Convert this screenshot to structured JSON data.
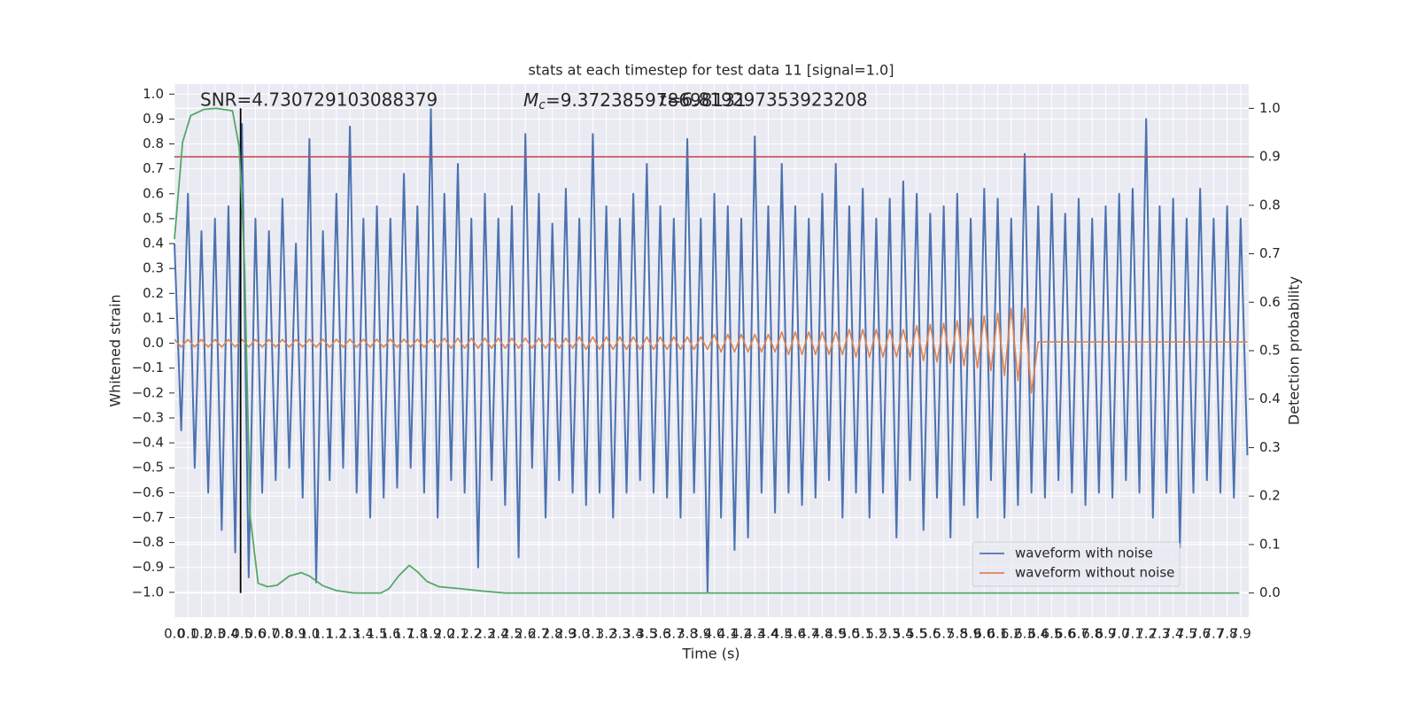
{
  "chart_data": {
    "type": "line",
    "title": "stats at each timestep for test data 11 [signal=1.0]",
    "x_label": "Time (s)",
    "y_label": "Whitened strain",
    "y2_label": "Detection probability",
    "annotations": {
      "snr": "SNR=4.730729103088379",
      "mc_symbol": "M",
      "mc_subscript": "c",
      "mc_value": "=9.372385978698131",
      "t": "t=6.819297353923208"
    },
    "xlim": [
      0,
      7.96
    ],
    "ylim": [
      -1.1,
      1.04
    ],
    "y2lim": [
      -0.05,
      1.05
    ],
    "grid": true,
    "legend": "lower right",
    "xticks": [
      {
        "value": 0,
        "label": "0.0"
      },
      0.1,
      0.2,
      0.3,
      0.4,
      0.5,
      0.6,
      0.7,
      0.8,
      0.9,
      {
        "value": 1,
        "label": "1.0"
      },
      1.1,
      1.2,
      1.3,
      1.4,
      1.5,
      1.6,
      1.7,
      1.8,
      1.9,
      {
        "value": 2,
        "label": "2.0"
      },
      2.1,
      2.2,
      2.3,
      2.4,
      2.5,
      2.6,
      2.7,
      2.8,
      2.9,
      {
        "value": 3,
        "label": "3.0"
      },
      3.1,
      3.2,
      3.3,
      3.4,
      3.5,
      3.6,
      3.7,
      3.8,
      3.9,
      {
        "value": 4,
        "label": "4.0"
      },
      4.1,
      4.2,
      4.3,
      4.4,
      4.5,
      4.6,
      4.7,
      4.8,
      4.9,
      {
        "value": 5,
        "label": "5.0"
      },
      5.1,
      5.2,
      5.3,
      5.4,
      5.5,
      5.6,
      5.7,
      5.8,
      5.9,
      {
        "value": 6,
        "label": "6.0"
      },
      6.1,
      6.2,
      6.3,
      6.4,
      6.5,
      6.6,
      6.7,
      6.8,
      6.9,
      {
        "value": 7,
        "label": "7.0"
      },
      7.1,
      7.2,
      7.3,
      7.4,
      7.5,
      7.6,
      7.7,
      7.8,
      7.9
    ],
    "yticks": [
      {
        "value": -1,
        "label": "−1.0"
      },
      {
        "value": -0.9,
        "label": "−0.9"
      },
      {
        "value": -0.8,
        "label": "−0.8"
      },
      {
        "value": -0.7,
        "label": "−0.7"
      },
      {
        "value": -0.6,
        "label": "−0.6"
      },
      {
        "value": -0.5,
        "label": "−0.5"
      },
      {
        "value": -0.4,
        "label": "−0.4"
      },
      {
        "value": -0.3,
        "label": "−0.3"
      },
      {
        "value": -0.2,
        "label": "−0.2"
      },
      {
        "value": -0.1,
        "label": "−0.1"
      },
      {
        "value": 0,
        "label": "0.0"
      },
      0.1,
      0.2,
      0.3,
      0.4,
      0.5,
      0.6,
      0.7,
      0.8,
      0.9,
      {
        "value": 1,
        "label": "1.0"
      }
    ],
    "y2ticks": [
      {
        "value": 0,
        "label": "0.0"
      },
      0.1,
      0.2,
      0.3,
      0.4,
      0.5,
      0.6,
      0.7,
      0.8,
      0.9,
      {
        "value": 1,
        "label": "1.0"
      }
    ],
    "series": [
      {
        "name": "waveform with noise",
        "color": "#4c72b0",
        "x": [
          0,
          0.05,
          0.1,
          0.15,
          0.2,
          0.25,
          0.3,
          0.35,
          0.4,
          0.45,
          0.5,
          0.55,
          0.6,
          0.65,
          0.7,
          0.75,
          0.8,
          0.85,
          0.9,
          0.95,
          1,
          1.05,
          1.1,
          1.15,
          1.2,
          1.25,
          1.3,
          1.35,
          1.4,
          1.45,
          1.5,
          1.55,
          1.6,
          1.65,
          1.7,
          1.75,
          1.8,
          1.85,
          1.9,
          1.95,
          2,
          2.05,
          2.1,
          2.15,
          2.2,
          2.25,
          2.3,
          2.35,
          2.4,
          2.45,
          2.5,
          2.55,
          2.6,
          2.65,
          2.7,
          2.75,
          2.8,
          2.85,
          2.9,
          2.95,
          3,
          3.05,
          3.1,
          3.15,
          3.2,
          3.25,
          3.3,
          3.35,
          3.4,
          3.45,
          3.5,
          3.55,
          3.6,
          3.65,
          3.7,
          3.75,
          3.8,
          3.85,
          3.9,
          3.95,
          4,
          4.05,
          4.1,
          4.15,
          4.2,
          4.25,
          4.3,
          4.35,
          4.4,
          4.45,
          4.5,
          4.55,
          4.6,
          4.65,
          4.7,
          4.75,
          4.8,
          4.85,
          4.9,
          4.95,
          5,
          5.05,
          5.1,
          5.15,
          5.2,
          5.25,
          5.3,
          5.35,
          5.4,
          5.45,
          5.5,
          5.55,
          5.6,
          5.65,
          5.7,
          5.75,
          5.8,
          5.85,
          5.9,
          5.95,
          6,
          6.05,
          6.1,
          6.15,
          6.2,
          6.25,
          6.3,
          6.35,
          6.4,
          6.45,
          6.5,
          6.55,
          6.6,
          6.65,
          6.7,
          6.75,
          6.8,
          6.85,
          6.9,
          6.95,
          7,
          7.05,
          7.1,
          7.15,
          7.2,
          7.25,
          7.3,
          7.35,
          7.4,
          7.45,
          7.5,
          7.55,
          7.6,
          7.65,
          7.7,
          7.75,
          7.8,
          7.85,
          7.9,
          7.95
        ],
        "values": [
          0.4,
          -0.35,
          0.6,
          -0.5,
          0.45,
          -0.6,
          0.5,
          -0.75,
          0.55,
          -0.84,
          0.88,
          -0.94,
          0.5,
          -0.6,
          0.45,
          -0.55,
          0.58,
          -0.5,
          0.4,
          -0.62,
          0.82,
          -0.96,
          0.45,
          -0.55,
          0.6,
          -0.5,
          0.87,
          -0.6,
          0.5,
          -0.7,
          0.55,
          -0.62,
          0.5,
          -0.58,
          0.68,
          -0.5,
          0.55,
          -0.6,
          0.94,
          -0.7,
          0.6,
          -0.55,
          0.72,
          -0.6,
          0.5,
          -0.9,
          0.6,
          -0.55,
          0.5,
          -0.65,
          0.55,
          -0.86,
          0.84,
          -0.5,
          0.6,
          -0.7,
          0.48,
          -0.55,
          0.62,
          -0.6,
          0.5,
          -0.65,
          0.84,
          -0.6,
          0.55,
          -0.7,
          0.5,
          -0.6,
          0.6,
          -0.55,
          0.72,
          -0.6,
          0.55,
          -0.62,
          0.5,
          -0.7,
          0.82,
          -0.6,
          0.5,
          -1.0,
          0.6,
          -0.7,
          0.55,
          -0.83,
          0.5,
          -0.78,
          0.83,
          -0.6,
          0.55,
          -0.68,
          0.72,
          -0.6,
          0.55,
          -0.65,
          0.5,
          -0.62,
          0.6,
          -0.55,
          0.72,
          -0.7,
          0.55,
          -0.6,
          0.62,
          -0.7,
          0.5,
          -0.6,
          0.58,
          -0.78,
          0.65,
          -0.55,
          0.6,
          -0.75,
          0.52,
          -0.62,
          0.55,
          -0.78,
          0.6,
          -0.65,
          0.5,
          -0.7,
          0.62,
          -0.55,
          0.58,
          -0.7,
          0.5,
          -0.65,
          0.76,
          -0.6,
          0.55,
          -0.62,
          0.6,
          -0.55,
          0.52,
          -0.6,
          0.58,
          -0.65,
          0.5,
          -0.6,
          0.55,
          -0.62,
          0.6,
          -0.55,
          0.62,
          -0.6,
          0.9,
          -0.7,
          0.55,
          -0.6,
          0.58,
          -0.82,
          0.5,
          -0.6,
          0.62,
          -0.55,
          0.5,
          -0.6,
          0.55,
          -0.62,
          0.5,
          -0.45
        ]
      },
      {
        "name": "waveform without noise",
        "color": "#dd8452",
        "x": [
          0,
          0.05,
          0.1,
          0.15,
          0.2,
          0.25,
          0.3,
          0.35,
          0.4,
          0.45,
          0.5,
          0.55,
          0.6,
          0.65,
          0.7,
          0.75,
          0.8,
          0.85,
          0.9,
          0.95,
          1,
          1.05,
          1.1,
          1.15,
          1.2,
          1.25,
          1.3,
          1.35,
          1.4,
          1.45,
          1.5,
          1.55,
          1.6,
          1.65,
          1.7,
          1.75,
          1.8,
          1.85,
          1.9,
          1.95,
          2,
          2.05,
          2.1,
          2.15,
          2.2,
          2.25,
          2.3,
          2.35,
          2.4,
          2.45,
          2.5,
          2.55,
          2.6,
          2.65,
          2.7,
          2.75,
          2.8,
          2.85,
          2.9,
          2.95,
          3,
          3.05,
          3.1,
          3.15,
          3.2,
          3.25,
          3.3,
          3.35,
          3.4,
          3.45,
          3.5,
          3.55,
          3.6,
          3.65,
          3.7,
          3.75,
          3.8,
          3.85,
          3.9,
          3.95,
          4,
          4.05,
          4.1,
          4.15,
          4.2,
          4.25,
          4.3,
          4.35,
          4.4,
          4.45,
          4.5,
          4.55,
          4.6,
          4.65,
          4.7,
          4.75,
          4.8,
          4.85,
          4.9,
          4.95,
          5,
          5.05,
          5.1,
          5.15,
          5.2,
          5.25,
          5.3,
          5.35,
          5.4,
          5.45,
          5.5,
          5.55,
          5.6,
          5.65,
          5.7,
          5.75,
          5.8,
          5.85,
          5.9,
          5.95,
          6,
          6.05,
          6.1,
          6.15,
          6.2,
          6.25,
          6.3,
          6.35,
          6.4,
          6.45,
          6.5,
          6.55,
          6.6,
          6.65,
          6.7,
          6.75,
          6.8,
          6.85,
          6.9,
          6.95,
          7,
          7.05,
          7.1,
          7.15,
          7.2,
          7.25,
          7.3,
          7.35,
          7.4,
          7.45,
          7.5,
          7.55,
          7.6,
          7.65,
          7.7,
          7.75,
          7.8,
          7.85,
          7.9,
          7.95
        ],
        "values": [
          0.015,
          -0.015,
          0.015,
          -0.015,
          0.015,
          -0.015,
          0.015,
          -0.015,
          0.015,
          -0.015,
          0.015,
          -0.015,
          0.015,
          -0.015,
          0.015,
          -0.015,
          0.015,
          -0.015,
          0.015,
          -0.015,
          0.016,
          -0.016,
          0.016,
          -0.016,
          0.016,
          -0.016,
          0.016,
          -0.016,
          0.016,
          -0.016,
          0.016,
          -0.016,
          0.016,
          -0.016,
          0.016,
          -0.016,
          0.016,
          -0.016,
          0.016,
          -0.016,
          0.02,
          -0.02,
          0.02,
          -0.02,
          0.02,
          -0.02,
          0.02,
          -0.02,
          0.02,
          -0.02,
          0.02,
          -0.02,
          0.02,
          -0.02,
          0.02,
          -0.02,
          0.02,
          -0.02,
          0.02,
          -0.02,
          0.025,
          -0.025,
          0.025,
          -0.025,
          0.025,
          -0.025,
          0.025,
          -0.025,
          0.025,
          -0.025,
          0.025,
          -0.025,
          0.025,
          -0.025,
          0.025,
          -0.025,
          0.025,
          -0.025,
          0.025,
          -0.025,
          0.035,
          -0.035,
          0.035,
          -0.035,
          0.035,
          -0.035,
          0.035,
          -0.035,
          0.035,
          -0.035,
          0.045,
          -0.045,
          0.045,
          -0.045,
          0.045,
          -0.045,
          0.045,
          -0.045,
          0.045,
          -0.045,
          0.055,
          -0.055,
          0.055,
          -0.055,
          0.055,
          -0.055,
          0.055,
          -0.055,
          0.055,
          -0.055,
          0.07,
          -0.07,
          0.075,
          -0.075,
          0.08,
          -0.08,
          0.09,
          -0.09,
          0.1,
          -0.1,
          0.11,
          -0.11,
          0.12,
          -0.13,
          0.14,
          -0.15,
          0.14,
          -0.2,
          0.005,
          0.005,
          0.005,
          0.005,
          0.005,
          0.005,
          0.005,
          0.005,
          0.005,
          0.005,
          0.005,
          0.005,
          0.005,
          0.005,
          0.005,
          0.005,
          0.005,
          0.005,
          0.005,
          0.005,
          0.005,
          0.005,
          0.005,
          0.005,
          0.005,
          0.005,
          0.005,
          0.005,
          0.005,
          0.005,
          0.005,
          0.005
        ]
      }
    ],
    "detection": {
      "color": "#55a868",
      "axis": "y2",
      "x": [
        0,
        0.06,
        0.12,
        0.22,
        0.31,
        0.43,
        0.48,
        0.52,
        0.56,
        0.62,
        0.69,
        0.76,
        0.85,
        0.94,
        1.0,
        1.1,
        1.2,
        1.33,
        1.53,
        1.59,
        1.66,
        1.74,
        1.8,
        1.87,
        1.96,
        2.12,
        2.28,
        2.45,
        7.89
      ],
      "values": [
        0.73,
        0.93,
        0.985,
        0.998,
        1.0,
        0.995,
        0.92,
        0.67,
        0.16,
        0.02,
        0.013,
        0.016,
        0.035,
        0.042,
        0.035,
        0.015,
        0.005,
        0.0,
        0.0,
        0.009,
        0.035,
        0.057,
        0.044,
        0.024,
        0.013,
        0.009,
        0.004,
        0.0,
        0.0
      ]
    },
    "hline": {
      "value": 0.9,
      "axis": "y2",
      "color": "#c44e52"
    },
    "vline": {
      "value": 0.49,
      "color": "#000000"
    }
  }
}
